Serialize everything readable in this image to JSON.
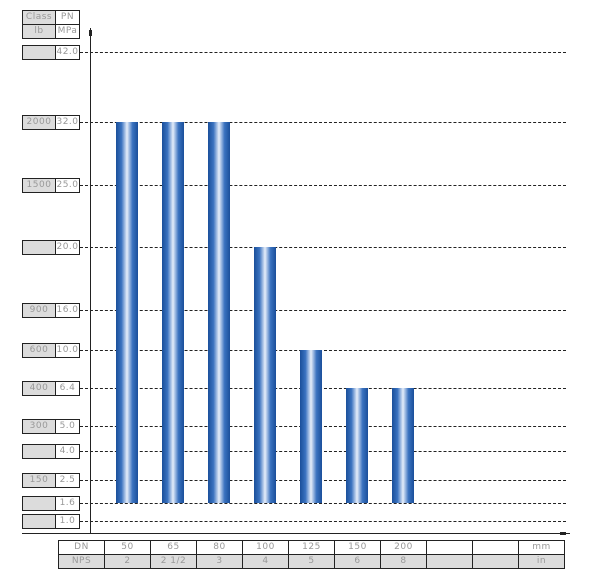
{
  "chart_data": {
    "type": "bar",
    "title": "",
    "y_header": {
      "class_label": "Class",
      "class_unit": "lb",
      "pn_label": "PN",
      "pn_unit": "MPa"
    },
    "y_levels": [
      {
        "pn": "42.0",
        "class": ""
      },
      {
        "pn": "32.0",
        "class": "2000"
      },
      {
        "pn": "25.0",
        "class": "1500"
      },
      {
        "pn": "20.0",
        "class": ""
      },
      {
        "pn": "16.0",
        "class": "900"
      },
      {
        "pn": "10.0",
        "class": "600"
      },
      {
        "pn": "6.4",
        "class": "400"
      },
      {
        "pn": "5.0",
        "class": "300"
      },
      {
        "pn": "4.0",
        "class": ""
      },
      {
        "pn": "2.5",
        "class": "150"
      },
      {
        "pn": "1.6",
        "class": ""
      },
      {
        "pn": "1.0",
        "class": ""
      }
    ],
    "x_table": {
      "dn_label": "DN",
      "nps_label": "NPS",
      "dn_unit": "mm",
      "nps_unit": "in",
      "dn": [
        "50",
        "65",
        "80",
        "100",
        "125",
        "150",
        "200",
        "",
        ""
      ],
      "nps": [
        "2",
        "2 1/2",
        "3",
        "4",
        "5",
        "6",
        "8",
        "",
        ""
      ]
    },
    "bars": [
      {
        "dn": "50",
        "from": 1.6,
        "to": 32.0
      },
      {
        "dn": "65",
        "from": 1.6,
        "to": 32.0
      },
      {
        "dn": "80",
        "from": 1.6,
        "to": 32.0
      },
      {
        "dn": "100",
        "from": 1.6,
        "to": 20.0
      },
      {
        "dn": "125",
        "from": 1.6,
        "to": 10.0
      },
      {
        "dn": "150",
        "from": 1.6,
        "to": 6.4
      },
      {
        "dn": "200",
        "from": 1.6,
        "to": 6.4
      }
    ],
    "grid": true,
    "bar_color": "#2a62b0"
  }
}
